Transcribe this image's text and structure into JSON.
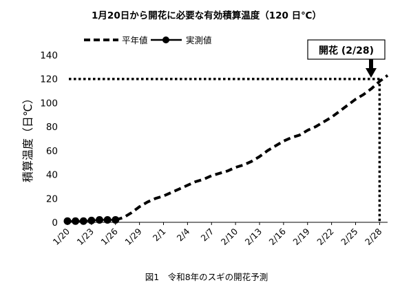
{
  "chart_data": {
    "type": "line",
    "title": "1月20日から開花に必要な有効積算温度（120 日℃）",
    "caption": "図1　令和8年のスギの開花予測",
    "ylabel": "積算温度（日℃）",
    "xlabel": "",
    "ylim": [
      0,
      140
    ],
    "yticks": [
      "0",
      "20",
      "40",
      "60",
      "80",
      "100",
      "120",
      "140"
    ],
    "x_ticks": [
      "1/20",
      "1/23",
      "1/26",
      "1/29",
      "2/1",
      "2/4",
      "2/7",
      "2/10",
      "2/13",
      "2/16",
      "2/19",
      "2/22",
      "2/25",
      "2/28"
    ],
    "x_range": [
      "1/20",
      "2/28"
    ],
    "grid": false,
    "legend_position": "top",
    "threshold": {
      "value": 120
    },
    "series": [
      {
        "name": "平年値",
        "style": "dashed",
        "color": "#000000",
        "x": [
          "1/26",
          "1/27",
          "1/28",
          "1/29",
          "1/30",
          "1/31",
          "2/1",
          "2/2",
          "2/3",
          "2/4",
          "2/5",
          "2/6",
          "2/7",
          "2/8",
          "2/9",
          "2/10",
          "2/11",
          "2/12",
          "2/13",
          "2/14",
          "2/15",
          "2/16",
          "2/17",
          "2/18",
          "2/19",
          "2/20",
          "2/21",
          "2/22",
          "2/23",
          "2/24",
          "2/25",
          "2/26",
          "2/27",
          "2/28",
          "3/1"
        ],
        "values": [
          2,
          4,
          8,
          13,
          17,
          20,
          22,
          25,
          28,
          31,
          34,
          36,
          39,
          41,
          43,
          46,
          48,
          51,
          55,
          60,
          64,
          68,
          71,
          73,
          77,
          80,
          84,
          88,
          93,
          98,
          103,
          107,
          112,
          118,
          123
        ]
      },
      {
        "name": "実測値",
        "style": "line-marker",
        "color": "#000000",
        "x": [
          "1/20",
          "1/21",
          "1/22",
          "1/23",
          "1/24",
          "1/25",
          "1/26"
        ],
        "values": [
          1,
          1,
          1,
          1.5,
          2,
          2,
          2
        ]
      }
    ],
    "annotations": [
      {
        "label": "開花 (2/28)",
        "x": "2/28",
        "y": 120
      }
    ]
  }
}
